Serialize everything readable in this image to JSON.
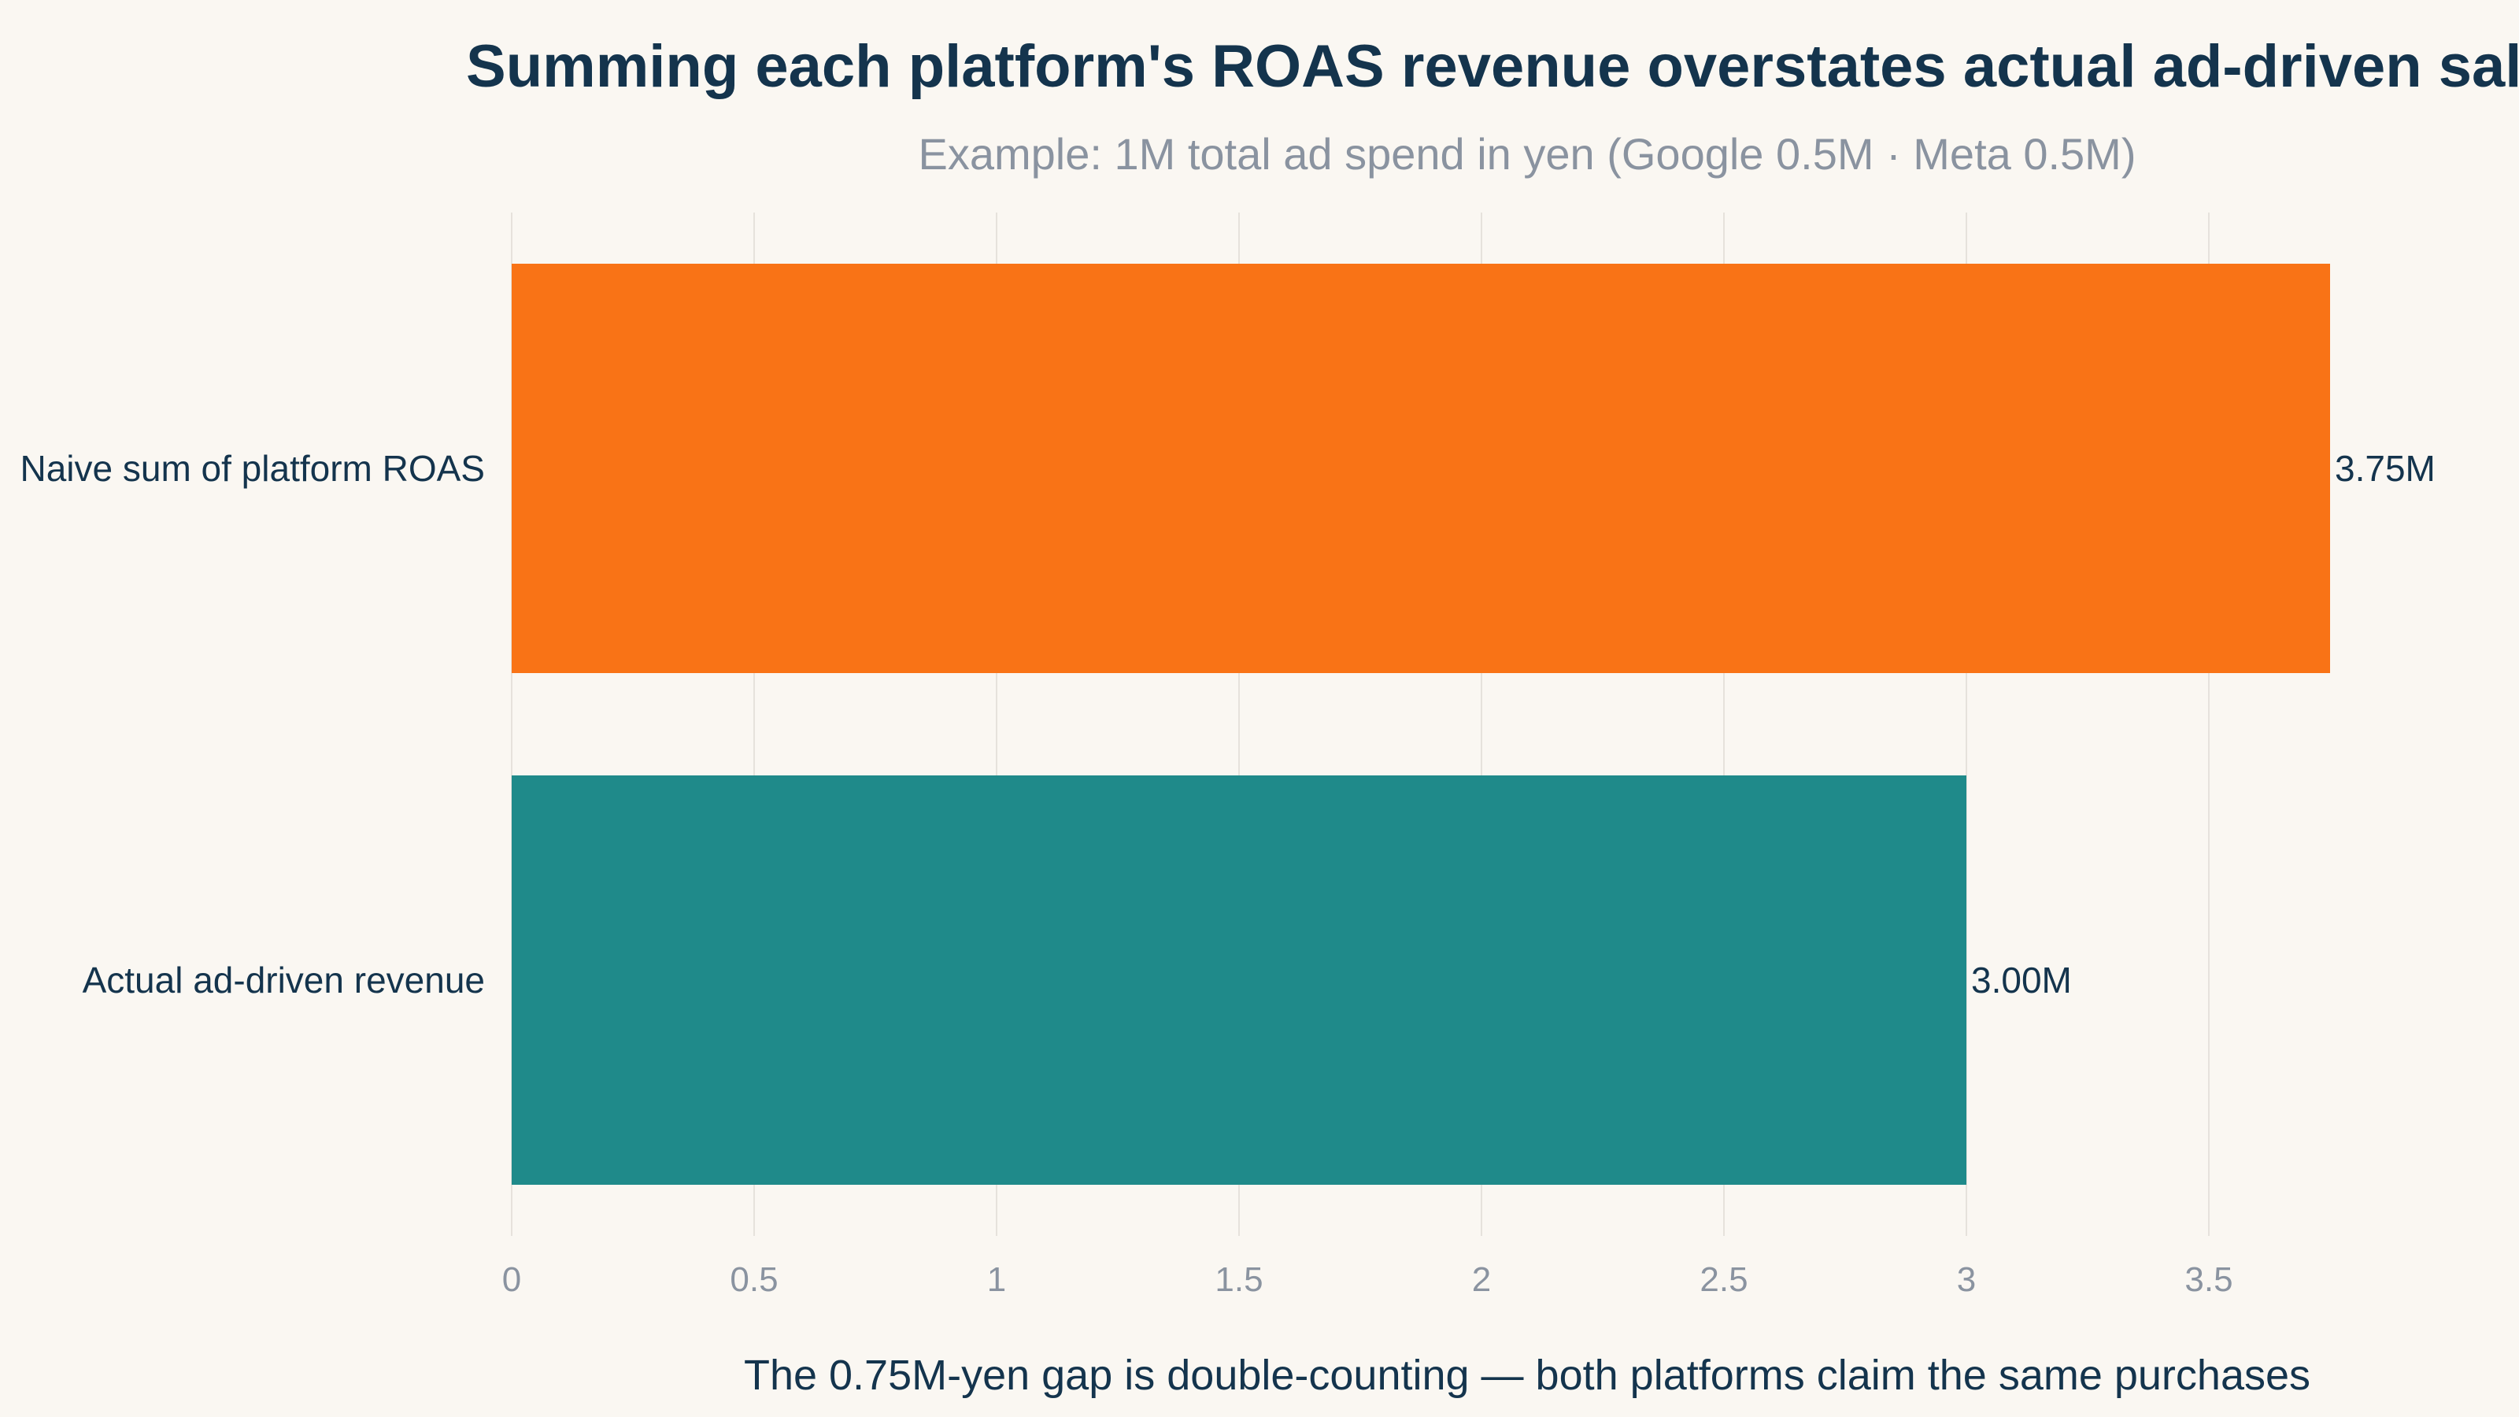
{
  "chart_data": {
    "type": "bar",
    "orientation": "horizontal",
    "title": "Summing each platform's ROAS revenue overstates actual ad-driven sales",
    "subtitle": "Example: 1M total ad spend in yen (Google 0.5M · Meta 0.5M)",
    "xlabel": "The 0.75M-yen gap is double-counting — both platforms claim the same purchases",
    "ylabel": "",
    "categories": [
      "Naive sum of platform ROAS",
      "Actual ad-driven revenue"
    ],
    "values": [
      3.75,
      3.0
    ],
    "value_labels": [
      "3.75M",
      "3.00M"
    ],
    "colors": [
      "#f97316",
      "#1f8a8a"
    ],
    "xlim": [
      0,
      3.75
    ],
    "xticks": [
      0,
      0.5,
      1,
      1.5,
      2,
      2.5,
      3,
      3.5
    ],
    "xtick_labels": [
      "0",
      "0.5",
      "1",
      "1.5",
      "2",
      "2.5",
      "3",
      "3.5"
    ],
    "grid": true,
    "legend": false
  }
}
